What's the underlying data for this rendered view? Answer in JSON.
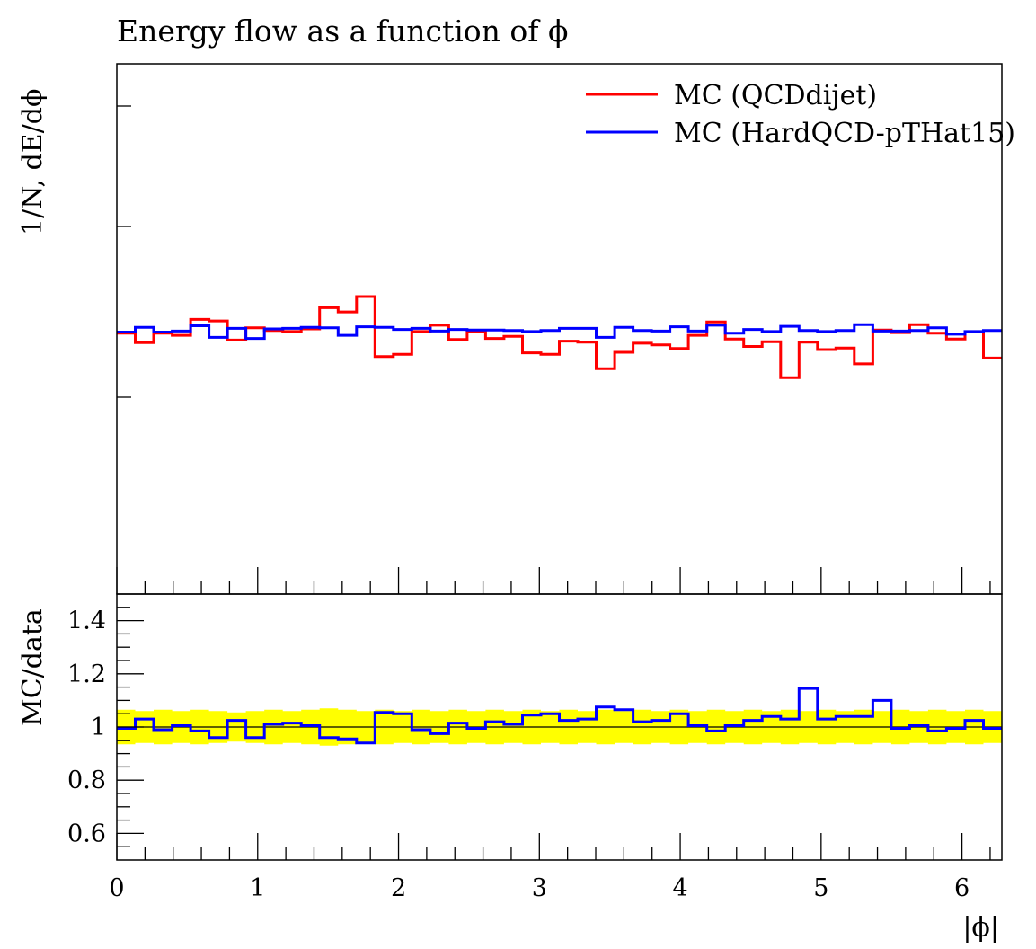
{
  "chart_data": [
    {
      "panel": "main",
      "type": "line",
      "drawstyle": "steps",
      "title": "Energy flow as a function of ϕ",
      "xlabel": "",
      "ylabel": "1/N, dE/dϕ",
      "xlim": [
        0,
        6.2832
      ],
      "ylim": [
        0,
        1
      ],
      "y_tick_labels": "none",
      "bin_edges": [
        0.0,
        0.1309,
        0.2618,
        0.3927,
        0.5236,
        0.6545,
        0.7854,
        0.9163,
        1.0472,
        1.1781,
        1.309,
        1.4399,
        1.5708,
        1.7017,
        1.8326,
        1.9635,
        2.0944,
        2.2253,
        2.3562,
        2.4871,
        2.618,
        2.7489,
        2.8798,
        3.0107,
        3.1416,
        3.2725,
        3.4034,
        3.5343,
        3.6652,
        3.7961,
        3.927,
        4.0579,
        4.1888,
        4.3197,
        4.4506,
        4.5815,
        4.7124,
        4.8433,
        4.9742,
        5.1051,
        5.236,
        5.3669,
        5.4978,
        5.6287,
        5.7596,
        5.8905,
        6.0214,
        6.1523,
        6.2832
      ],
      "series": [
        {
          "name": "MC (QCDdijet)",
          "color": "#ff0000",
          "values": [
            0.492,
            0.474,
            0.492,
            0.488,
            0.518,
            0.515,
            0.479,
            0.502,
            0.497,
            0.495,
            0.5,
            0.54,
            0.532,
            0.561,
            0.448,
            0.452,
            0.495,
            0.507,
            0.48,
            0.495,
            0.482,
            0.486,
            0.455,
            0.452,
            0.477,
            0.475,
            0.425,
            0.456,
            0.473,
            0.47,
            0.463,
            0.488,
            0.513,
            0.481,
            0.467,
            0.476,
            0.408,
            0.475,
            0.461,
            0.464,
            0.434,
            0.498,
            0.493,
            0.508,
            0.492,
            0.481,
            0.494,
            0.445
          ]
        },
        {
          "name": "MC (HardQCD-pTHat15)",
          "color": "#0000ff",
          "values": [
            0.494,
            0.503,
            0.494,
            0.496,
            0.506,
            0.484,
            0.501,
            0.482,
            0.5,
            0.501,
            0.503,
            0.502,
            0.488,
            0.504,
            0.503,
            0.499,
            0.501,
            0.496,
            0.499,
            0.498,
            0.498,
            0.497,
            0.495,
            0.497,
            0.501,
            0.501,
            0.484,
            0.503,
            0.497,
            0.496,
            0.504,
            0.496,
            0.507,
            0.492,
            0.499,
            0.495,
            0.505,
            0.497,
            0.495,
            0.497,
            0.508,
            0.496,
            0.496,
            0.497,
            0.502,
            0.49,
            0.495,
            0.497
          ]
        }
      ],
      "legend": "top-right"
    },
    {
      "panel": "ratio",
      "type": "line",
      "drawstyle": "steps",
      "xlabel": "|ϕ|",
      "ylabel": "MC/data",
      "xlim": [
        0,
        6.2832
      ],
      "ylim": [
        0.5,
        1.5
      ],
      "x_ticks": [
        0,
        1,
        2,
        3,
        4,
        5,
        6
      ],
      "x_tick_labels": [
        "0",
        "1",
        "2",
        "3",
        "4",
        "5",
        "6"
      ],
      "y_ticks": [
        0.6,
        0.8,
        1.0,
        1.2,
        1.4
      ],
      "y_tick_labels": [
        "0.6",
        "0.8",
        "1",
        "1.2",
        "1.4"
      ],
      "reference_line": 1.0,
      "uncertainty_band": {
        "color": "#ffff00",
        "half_width": [
          0.065,
          0.06,
          0.065,
          0.06,
          0.065,
          0.06,
          0.055,
          0.06,
          0.065,
          0.06,
          0.065,
          0.07,
          0.065,
          0.06,
          0.065,
          0.06,
          0.065,
          0.06,
          0.065,
          0.06,
          0.065,
          0.06,
          0.065,
          0.06,
          0.065,
          0.06,
          0.065,
          0.06,
          0.065,
          0.06,
          0.065,
          0.06,
          0.065,
          0.06,
          0.065,
          0.06,
          0.065,
          0.06,
          0.065,
          0.06,
          0.065,
          0.06,
          0.065,
          0.06,
          0.065,
          0.06,
          0.065,
          0.06
        ]
      },
      "series": [
        {
          "name": "MC (HardQCD-pTHat15)",
          "color": "#0000ff",
          "values": [
            0.995,
            1.03,
            0.99,
            1.005,
            0.985,
            0.96,
            1.025,
            0.96,
            1.01,
            1.015,
            1.005,
            0.96,
            0.955,
            0.94,
            1.055,
            1.05,
            0.99,
            0.975,
            1.015,
            0.995,
            1.02,
            1.01,
            1.045,
            1.05,
            1.025,
            1.03,
            1.075,
            1.065,
            1.02,
            1.025,
            1.05,
            1.005,
            0.985,
            1.005,
            1.025,
            1.04,
            1.03,
            1.145,
            1.03,
            1.04,
            1.04,
            1.1,
            0.995,
            1.005,
            0.985,
            0.995,
            1.025,
            0.995
          ]
        }
      ]
    }
  ]
}
